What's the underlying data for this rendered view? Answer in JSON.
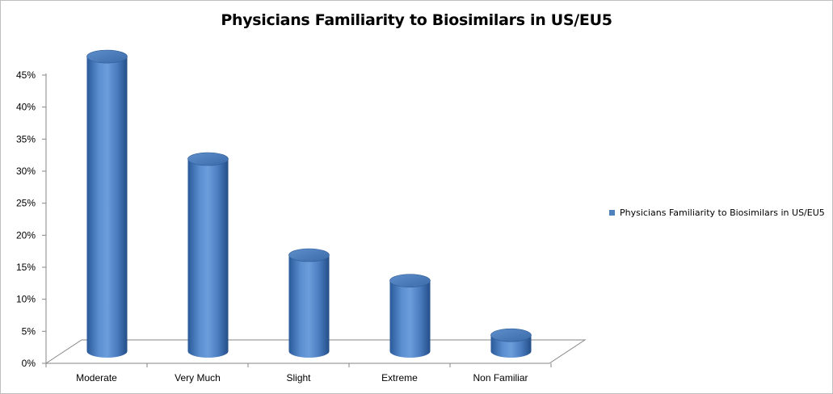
{
  "chart_data": {
    "type": "bar",
    "title": "Physicians Familiarity to Biosimilars in US/EU5",
    "categories": [
      "Moderate",
      "Very Much",
      "Slight",
      "Extreme",
      "Non Familiar"
    ],
    "series": [
      {
        "name": "Physicians Familiarity to Biosimilars in US/EU5",
        "values": [
          46,
          30,
          15,
          11,
          2.5
        ],
        "color": "#4F81BD"
      }
    ],
    "ylim": [
      0,
      45
    ],
    "ytick_step": 5,
    "ytick_labels": [
      "0%",
      "5%",
      "10%",
      "15%",
      "20%",
      "25%",
      "30%",
      "35%",
      "40%",
      "45%"
    ],
    "grid": false,
    "legend_position": "right",
    "bar_shape": "3d-cylinder"
  }
}
